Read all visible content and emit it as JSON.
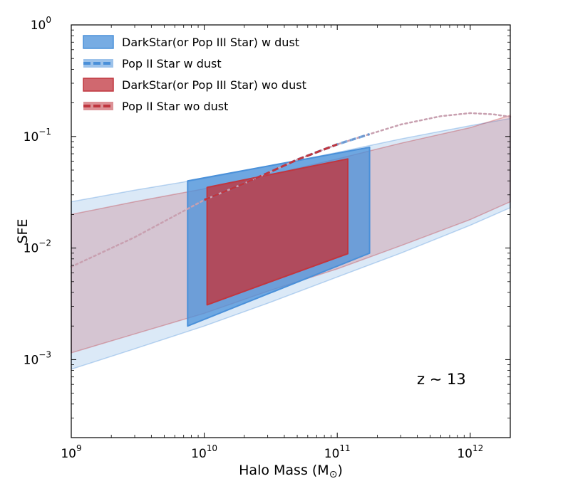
{
  "chart_data": {
    "type": "area",
    "xlabel": "Halo Mass (M",
    "xlabel_symbol": "⊙",
    "xlabel_close": ")",
    "ylabel": "SFE",
    "xscale": "log",
    "yscale": "log",
    "xlim": [
      1000000000.0,
      2000000000000.0
    ],
    "ylim": [
      0.0002,
      1
    ],
    "x_ticks": [
      {
        "value": 1000000000.0,
        "base": "10",
        "exp": "9"
      },
      {
        "value": 10000000000.0,
        "base": "10",
        "exp": "10"
      },
      {
        "value": 100000000000.0,
        "base": "10",
        "exp": "11"
      },
      {
        "value": 1000000000000.0,
        "base": "10",
        "exp": "12"
      }
    ],
    "y_ticks": [
      {
        "value": 1,
        "base": "10",
        "exp": "0"
      },
      {
        "value": 0.1,
        "base": "10",
        "exp": "−1"
      },
      {
        "value": 0.01,
        "base": "10",
        "exp": "−2"
      },
      {
        "value": 0.001,
        "base": "10",
        "exp": "−3"
      }
    ],
    "annotation": "z ∼ 13",
    "colors": {
      "blue": "#4a90d9",
      "red": "#c0363f"
    },
    "legend": {
      "position": "top-left",
      "entries": [
        {
          "label": "DarkStar(or Pop III Star)  w dust",
          "color": "#4a90d9",
          "style": "solid"
        },
        {
          "label": "Pop II Star  w dust",
          "color": "#4a90d9",
          "style": "dashed"
        },
        {
          "label": "DarkStar(or Pop III Star)  wo dust",
          "color": "#c0363f",
          "style": "solid"
        },
        {
          "label": "Pop II Star  wo dust",
          "color": "#c0363f",
          "style": "dashed"
        }
      ]
    },
    "series": [
      {
        "name": "Pop II Star w dust (band)",
        "color": "#4a90d9",
        "opacity": 0.2,
        "x": [
          1000000000.0,
          3000000000.0,
          10000000000.0,
          30000000000.0,
          100000000000.0,
          300000000000.0,
          1000000000000.0,
          2000000000000.0
        ],
        "y_low": [
          0.00082,
          0.00125,
          0.002,
          0.0032,
          0.0055,
          0.009,
          0.016,
          0.023
        ],
        "y_high": [
          0.026,
          0.033,
          0.042,
          0.054,
          0.072,
          0.095,
          0.125,
          0.145
        ]
      },
      {
        "name": "Pop II Star wo dust (band)",
        "color": "#c0363f",
        "opacity": 0.2,
        "x": [
          1000000000.0,
          3000000000.0,
          10000000000.0,
          30000000000.0,
          100000000000.0,
          300000000000.0,
          1000000000000.0,
          2000000000000.0
        ],
        "y_low": [
          0.00115,
          0.0017,
          0.0026,
          0.0041,
          0.0065,
          0.0105,
          0.018,
          0.026
        ],
        "y_high": [
          0.02,
          0.026,
          0.034,
          0.045,
          0.063,
          0.087,
          0.12,
          0.155
        ]
      },
      {
        "name": "DarkStar(or Pop III Star) w dust",
        "color": "#4a90d9",
        "opacity": 0.75,
        "x": [
          7500000000.0,
          175000000000.0
        ],
        "y_low": [
          0.002,
          0.009
        ],
        "y_high": [
          0.04,
          0.08
        ]
      },
      {
        "name": "DarkStar(or Pop III Star) wo dust",
        "color": "#c0363f",
        "opacity": 0.8,
        "x": [
          10500000000.0,
          120000000000.0
        ],
        "y_low": [
          0.0031,
          0.0089
        ],
        "y_high": [
          0.035,
          0.063
        ]
      },
      {
        "name": "Pop II Star median",
        "style": "dashed",
        "x": [
          1000000000.0,
          3000000000.0,
          10000000000.0,
          20000000000.0,
          30000000000.0,
          50000000000.0,
          100000000000.0,
          175000000000.0,
          300000000000.0,
          600000000000.0,
          1000000000000.0,
          1500000000000.0,
          2000000000000.0
        ],
        "y": [
          0.0068,
          0.0125,
          0.027,
          0.038,
          0.047,
          0.062,
          0.085,
          0.105,
          0.128,
          0.152,
          0.162,
          0.158,
          0.15
        ]
      }
    ]
  }
}
